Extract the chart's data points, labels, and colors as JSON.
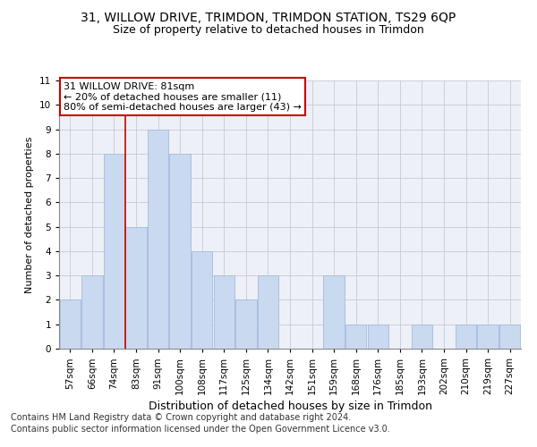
{
  "title1": "31, WILLOW DRIVE, TRIMDON, TRIMDON STATION, TS29 6QP",
  "title2": "Size of property relative to detached houses in Trimdon",
  "xlabel": "Distribution of detached houses by size in Trimdon",
  "ylabel": "Number of detached properties",
  "categories": [
    "57sqm",
    "66sqm",
    "74sqm",
    "83sqm",
    "91sqm",
    "100sqm",
    "108sqm",
    "117sqm",
    "125sqm",
    "134sqm",
    "142sqm",
    "151sqm",
    "159sqm",
    "168sqm",
    "176sqm",
    "185sqm",
    "193sqm",
    "202sqm",
    "210sqm",
    "219sqm",
    "227sqm"
  ],
  "values": [
    2,
    3,
    8,
    5,
    9,
    8,
    4,
    3,
    2,
    3,
    0,
    0,
    3,
    1,
    1,
    0,
    1,
    0,
    1,
    1,
    1
  ],
  "bar_color": "#c9d9ef",
  "bar_edgecolor": "#a8c0e0",
  "vline_x_index": 3,
  "vline_color": "#cc0000",
  "annotation_text": "31 WILLOW DRIVE: 81sqm\n← 20% of detached houses are smaller (11)\n80% of semi-detached houses are larger (43) →",
  "annotation_box_color": "#ffffff",
  "annotation_box_edgecolor": "#cc0000",
  "ylim": [
    0,
    11
  ],
  "yticks": [
    0,
    1,
    2,
    3,
    4,
    5,
    6,
    7,
    8,
    9,
    10,
    11
  ],
  "footnote1": "Contains HM Land Registry data © Crown copyright and database right 2024.",
  "footnote2": "Contains public sector information licensed under the Open Government Licence v3.0.",
  "grid_color": "#c8c8d8",
  "background_color": "#eef0f8",
  "title1_fontsize": 10,
  "title2_fontsize": 9,
  "ylabel_fontsize": 8,
  "xlabel_fontsize": 9,
  "annotation_fontsize": 8,
  "tick_fontsize": 7.5,
  "footnote_fontsize": 7
}
